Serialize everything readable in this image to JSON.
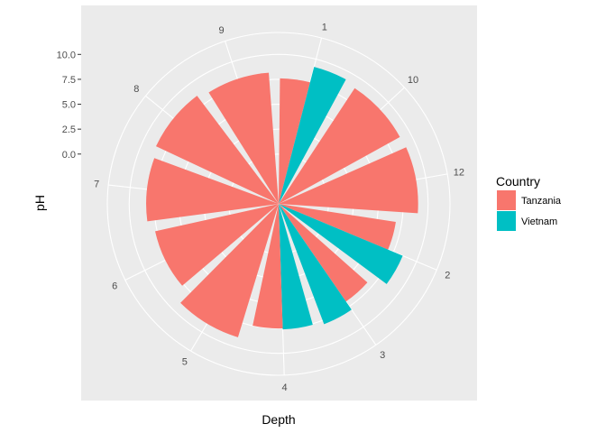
{
  "chart_data": {
    "type": "polar-bar",
    "xlabel": "Depth",
    "ylabel": "pH",
    "y_ticks": [
      "0.0",
      "2.5",
      "5.0",
      "7.5",
      "10.0"
    ],
    "ylim": [
      -5,
      12.2
    ],
    "categories": [
      "1",
      "10",
      "12",
      "2",
      "3",
      "4",
      "5",
      "6",
      "7",
      "8",
      "9"
    ],
    "legend": {
      "title": "Country",
      "position": "right"
    },
    "series": [
      {
        "name": "Tanzania",
        "color": "#F8766D"
      },
      {
        "name": "Vietnam",
        "color": "#00BFC4"
      }
    ],
    "bars": [
      {
        "category": "1",
        "country": "Tanzania",
        "value": 7.6
      },
      {
        "category": "1",
        "country": "Vietnam",
        "value": 9.2
      },
      {
        "category": "10",
        "country": "Tanzania",
        "value": 8.9
      },
      {
        "category": "12",
        "country": "Tanzania",
        "value": 9.0
      },
      {
        "category": "2",
        "country": "Tanzania",
        "value": 6.9
      },
      {
        "category": "2",
        "country": "Vietnam",
        "value": 8.5
      },
      {
        "category": "3",
        "country": "Tanzania",
        "value": 6.9
      },
      {
        "category": "3",
        "country": "Vietnam",
        "value": 7.9
      },
      {
        "category": "4",
        "country": "Vietnam",
        "value": 7.6
      },
      {
        "category": "4",
        "country": "Tanzania",
        "value": 7.5
      },
      {
        "category": "5",
        "country": "Tanzania",
        "value": 9.0
      },
      {
        "category": "6",
        "country": "Tanzania",
        "value": 7.7
      },
      {
        "category": "7",
        "country": "Tanzania",
        "value": 8.3
      },
      {
        "category": "8",
        "country": "Tanzania",
        "value": 8.6
      },
      {
        "category": "9",
        "country": "Tanzania",
        "value": 8.2
      }
    ]
  }
}
